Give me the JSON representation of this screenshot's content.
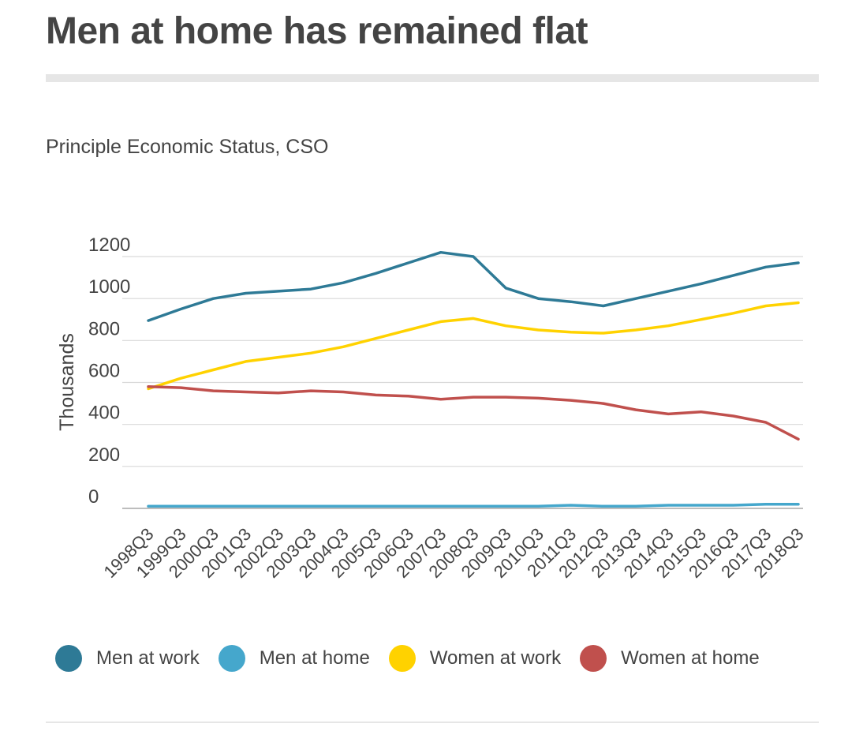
{
  "header": {
    "title": "Men at home has remained flat",
    "subtitle": "Principle Economic Status, CSO"
  },
  "chart_data": {
    "type": "line",
    "ylabel": "Thousands",
    "ylim": [
      0,
      1200
    ],
    "yticks": [
      0,
      200,
      400,
      600,
      800,
      1000,
      1200
    ],
    "grid": true,
    "legend_position": "bottom",
    "x_tick_labels": [
      "1998Q3",
      "1999Q3",
      "2000Q3",
      "2001Q3",
      "2002Q3",
      "2003Q3",
      "2004Q3",
      "2005Q3",
      "2006Q3",
      "2007Q3",
      "2008Q3",
      "2009Q3",
      "2010Q3",
      "2011Q3",
      "2012Q3",
      "2013Q3",
      "2014Q3",
      "2015Q3",
      "2016Q3",
      "2017Q3",
      "2018Q3"
    ],
    "x": [
      "1998Q3",
      "1999Q3",
      "2000Q3",
      "2001Q3",
      "2002Q3",
      "2003Q3",
      "2004Q3",
      "2005Q3",
      "2006Q3",
      "2007Q3",
      "2008Q3",
      "2009Q3",
      "2010Q3",
      "2011Q3",
      "2012Q3",
      "2013Q3",
      "2014Q3",
      "2015Q3",
      "2016Q3",
      "2017Q3",
      "2018Q3"
    ],
    "series": [
      {
        "name": "Men at work",
        "color": "#2e7a96",
        "values": [
          895,
          950,
          1000,
          1025,
          1035,
          1045,
          1075,
          1120,
          1170,
          1220,
          1200,
          1050,
          1000,
          985,
          965,
          1000,
          1035,
          1070,
          1110,
          1150,
          1170
        ]
      },
      {
        "name": "Men at home",
        "color": "#45a7cc",
        "values": [
          10,
          10,
          10,
          10,
          10,
          10,
          10,
          10,
          10,
          10,
          10,
          10,
          10,
          15,
          10,
          10,
          15,
          15,
          15,
          20,
          20
        ]
      },
      {
        "name": "Women at work",
        "color": "#ffd200",
        "values": [
          570,
          620,
          660,
          700,
          720,
          740,
          770,
          810,
          850,
          890,
          905,
          870,
          850,
          840,
          835,
          850,
          870,
          900,
          930,
          965,
          980
        ]
      },
      {
        "name": "Women at home",
        "color": "#c0504d",
        "values": [
          580,
          575,
          560,
          555,
          550,
          560,
          555,
          540,
          535,
          520,
          530,
          530,
          525,
          515,
          500,
          470,
          450,
          460,
          440,
          410,
          330
        ]
      }
    ]
  }
}
